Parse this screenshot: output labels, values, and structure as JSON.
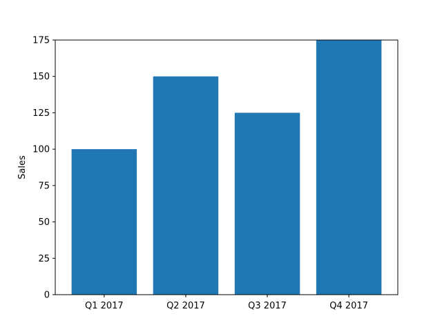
{
  "chart_data": {
    "type": "bar",
    "title": "",
    "xlabel": "",
    "ylabel": "Sales",
    "categories": [
      "Q1 2017",
      "Q2 2017",
      "Q3 2017",
      "Q4 2017"
    ],
    "values": [
      100,
      150,
      125,
      175
    ],
    "ylim": [
      0,
      175
    ],
    "yticks": [
      0,
      25,
      50,
      75,
      100,
      125,
      150,
      175
    ],
    "grid": false,
    "legend": "none",
    "bar_color": "#1f77b4"
  }
}
